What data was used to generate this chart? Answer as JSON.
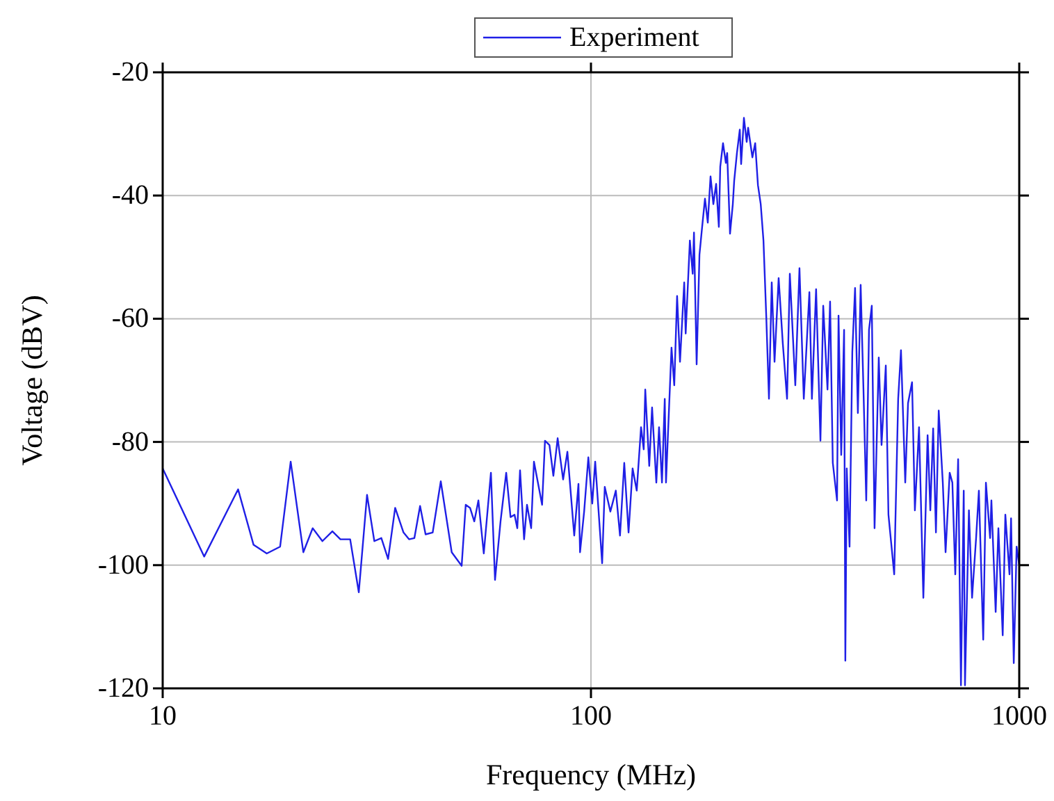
{
  "chart_data": {
    "type": "line",
    "xlabel": "Frequency (MHz)",
    "ylabel": "Voltage (dBV)",
    "log": "x",
    "grid": true,
    "legend": "top",
    "marker": "none",
    "line_style": "solid",
    "xlim": [
      10,
      1000
    ],
    "xticks": [
      10,
      100,
      1000
    ],
    "ylim": [
      -120,
      -20
    ],
    "yticks": [
      -120,
      -100,
      -80,
      -60,
      -40,
      -20
    ],
    "series": [
      {
        "name": "Experiment",
        "color": "#1f1fe6",
        "x": [
          10,
          12.5,
          15.0,
          16.3,
          17.5,
          18.8,
          19.9,
          21.3,
          22.4,
          23.6,
          24.9,
          26.0,
          27.4,
          28.7,
          30.0,
          31.2,
          32.4,
          33.6,
          34.9,
          36.5,
          37.6,
          38.7,
          39.9,
          41.1,
          42.7,
          44.6,
          47.3,
          49.9,
          51.0,
          52.2,
          53.4,
          54.6,
          56.2,
          58.4,
          59.7,
          61.5,
          63.4,
          64.9,
          66.3,
          67.3,
          68.3,
          69.8,
          70.9,
          72.5,
          73.6,
          76.9,
          78.1,
          80.0,
          81.7,
          83.6,
          86.1,
          88.1,
          91.4,
          93.5,
          94.3,
          96.4,
          98.6,
          100.7,
          102.3,
          106.2,
          107.7,
          111,
          114.3,
          116.9,
          119.6,
          122.4,
          125.1,
          127.9,
          130.9,
          132.8,
          133.9,
          136.8,
          138.9,
          142.1,
          144.2,
          146.5,
          148.7,
          149.7,
          154.2,
          156.5,
          158.9,
          161.4,
          165.1,
          166.4,
          170.2,
          172.8,
          174.0,
          176.5,
          179.2,
          181.8,
          184.6,
          187.4,
          190.2,
          193.1,
          196.0,
          198.9,
          200.4,
          203.4,
          206.5,
          208.0,
          211.2,
          214.4,
          216.0,
          219.2,
          222.6,
          224.2,
          227.6,
          231.0,
          232.8,
          238.2,
          241.8,
          245.4,
          249.1,
          252.8,
          256.6,
          260.4,
          264.3,
          268.3,
          274.3,
          280.5,
          287,
          291.3,
          300,
          306.8,
          314,
          323.6,
          328,
          335.5,
          343.4,
          348.6,
          356.7,
          361.7,
          367,
          375.5,
          378.5,
          384,
          390,
          392.6,
          395.6,
          401.6,
          407.6,
          413.7,
          420,
          426.3,
          432.8,
          439.3,
          445.9,
          452.6,
          459.4,
          469.9,
          477,
          488,
          495,
          510.6,
          521.6,
          529.5,
          541.8,
          550,
          562,
          570.6,
          583.5,
          597.2,
          611,
          620,
          629.5,
          639,
          648.6,
          663,
          673,
          688,
          698,
          709,
          720,
          731,
          742,
          747,
          763,
          776,
          793,
          805,
          824,
          836,
          855,
          861,
          881,
          894,
          915,
          928,
          949,
          957,
          971,
          986,
          1000
        ],
        "values": [
          -84.3,
          -98.6,
          -87.7,
          -96.7,
          -98.1,
          -97,
          -83.2,
          -97.9,
          -94,
          -96.1,
          -94.5,
          -95.8,
          -95.8,
          -104.4,
          -88.6,
          -96.1,
          -95.6,
          -99,
          -90.7,
          -94.7,
          -95.8,
          -95.6,
          -90.4,
          -95,
          -94.7,
          -86.4,
          -97.9,
          -100.1,
          -90.2,
          -90.7,
          -92.9,
          -89.5,
          -98.1,
          -85,
          -102.4,
          -92.9,
          -85,
          -92.2,
          -91.8,
          -94,
          -84.6,
          -95.8,
          -90.2,
          -94,
          -83.2,
          -90.2,
          -79.8,
          -80.5,
          -85.5,
          -79.4,
          -86.1,
          -81.6,
          -95.2,
          -86.8,
          -97.9,
          -91.3,
          -82.5,
          -90.0,
          -83.2,
          -99.7,
          -87.3,
          -91.3,
          -87.9,
          -95.2,
          -83.4,
          -94.7,
          -84.3,
          -87.9,
          -77.6,
          -81.2,
          -71.5,
          -83.9,
          -74.4,
          -86.6,
          -77.6,
          -86.6,
          -73.0,
          -86.6,
          -64.7,
          -70.8,
          -56.3,
          -67.0,
          -54.1,
          -62.4,
          -47.3,
          -52.7,
          -46.0,
          -67.4,
          -49.6,
          -45.1,
          -40.5,
          -44.4,
          -36.9,
          -41.4,
          -38.1,
          -45.1,
          -35.3,
          -31.5,
          -34.7,
          -33.1,
          -46.2,
          -41.4,
          -37.6,
          -33.1,
          -29.3,
          -34.9,
          -27.4,
          -31.3,
          -29.0,
          -33.8,
          -31.5,
          -38.3,
          -41.4,
          -47.3,
          -59.5,
          -73.0,
          -54.1,
          -67.0,
          -53.4,
          -64.0,
          -73.0,
          -52.7,
          -70.8,
          -51.8,
          -73.0,
          -55.7,
          -73.0,
          -55.2,
          -79.8,
          -57.9,
          -71.5,
          -57.2,
          -83.4,
          -89.5,
          -59.5,
          -82.1,
          -61.8,
          -115.5,
          -84.3,
          -97.0,
          -65.4,
          -55.0,
          -75.3,
          -54.5,
          -71.5,
          -89.5,
          -61.8,
          -57.9,
          -94.0,
          -66.3,
          -80.5,
          -67.6,
          -91.8,
          -101.5,
          -73.0,
          -65.1,
          -86.6,
          -73.7,
          -70.3,
          -91.1,
          -77.6,
          -105.3,
          -78.9,
          -91.1,
          -77.8,
          -94.7,
          -74.9,
          -86.6,
          -97.9,
          -85.0,
          -86.6,
          -101.5,
          -82.8,
          -119.5,
          -87.9,
          -119.5,
          -91.1,
          -105.3,
          -95.6,
          -87.9,
          -112.1,
          -86.6,
          -95.6,
          -89.5,
          -107.6,
          -94.0,
          -111.4,
          -91.8,
          -101.5,
          -92.4,
          -115.9,
          -97.0,
          -100
        ]
      }
    ]
  }
}
